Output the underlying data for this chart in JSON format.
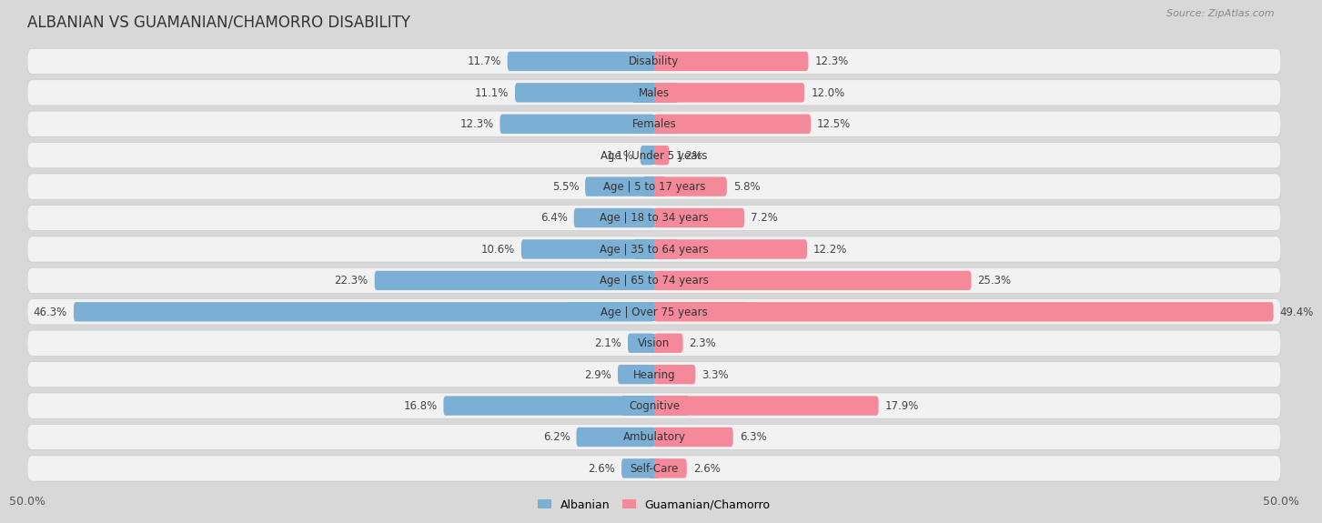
{
  "title": "ALBANIAN VS GUAMANIAN/CHAMORRO DISABILITY",
  "source": "Source: ZipAtlas.com",
  "categories": [
    "Disability",
    "Males",
    "Females",
    "Age | Under 5 years",
    "Age | 5 to 17 years",
    "Age | 18 to 34 years",
    "Age | 35 to 64 years",
    "Age | 65 to 74 years",
    "Age | Over 75 years",
    "Vision",
    "Hearing",
    "Cognitive",
    "Ambulatory",
    "Self-Care"
  ],
  "albanian": [
    11.7,
    11.1,
    12.3,
    1.1,
    5.5,
    6.4,
    10.6,
    22.3,
    46.3,
    2.1,
    2.9,
    16.8,
    6.2,
    2.6
  ],
  "guamanian": [
    12.3,
    12.0,
    12.5,
    1.2,
    5.8,
    7.2,
    12.2,
    25.3,
    49.4,
    2.3,
    3.3,
    17.9,
    6.3,
    2.6
  ],
  "max_val": 50.0,
  "albanian_color": "#7bafd4",
  "guamanian_color": "#f4899a",
  "albanian_color_light": "#b8d4ea",
  "guamanian_color_light": "#f9bfc9",
  "bar_height": 0.62,
  "outer_bg": "#d8d8d8",
  "row_bg": "#f2f2f2",
  "legend_albanian": "Albanian",
  "legend_guamanian": "Guamanian/Chamorro",
  "title_fontsize": 12,
  "label_fontsize": 8.5,
  "value_fontsize": 8.5
}
